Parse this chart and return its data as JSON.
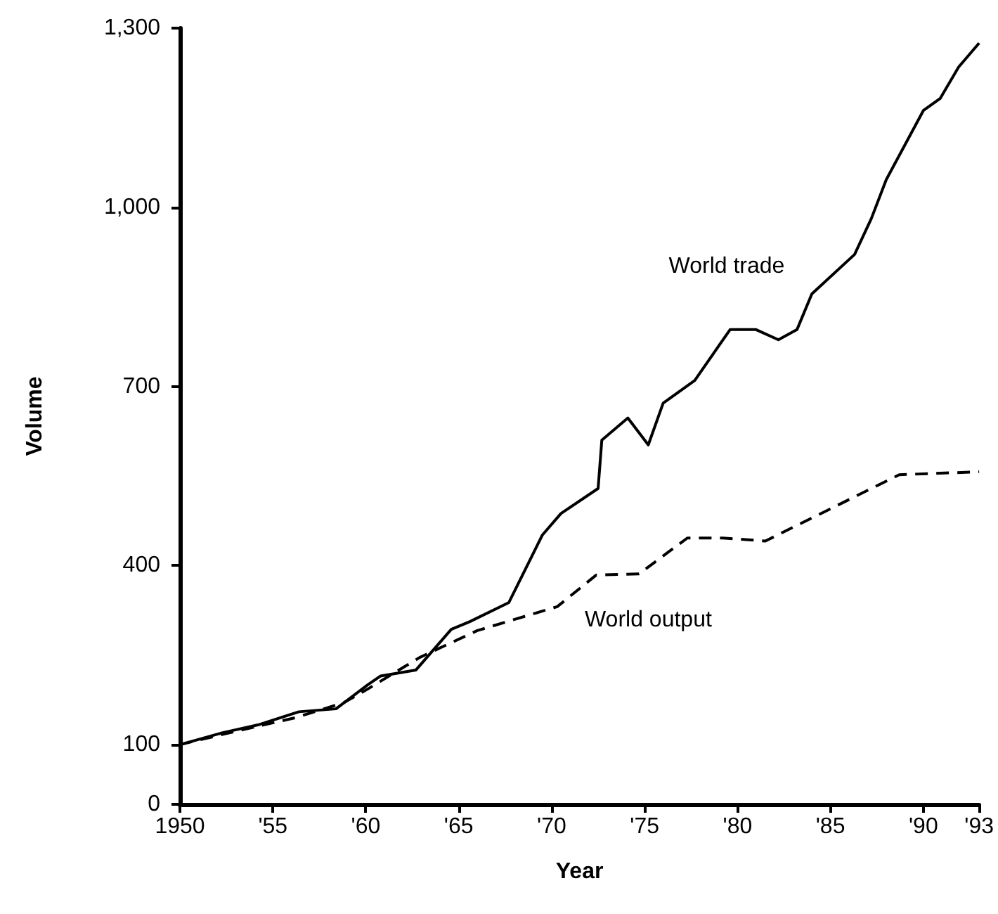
{
  "chart_data": {
    "type": "line",
    "xlabel": "Year",
    "ylabel": "Volume",
    "xlim": [
      1950,
      1993
    ],
    "xticks": [
      1950,
      {
        "value": 1955,
        "label": "'55"
      },
      {
        "value": 1960,
        "label": "'60"
      },
      {
        "value": 1965,
        "label": "'65"
      },
      {
        "value": 1970,
        "label": "'70"
      },
      {
        "value": 1975,
        "label": "'75"
      },
      {
        "value": 1980,
        "label": "'80"
      },
      {
        "value": 1985,
        "label": "'85"
      },
      {
        "value": 1990,
        "label": "'90"
      },
      {
        "value": 1993,
        "label": "'93"
      }
    ],
    "ylim": [
      0,
      1300
    ],
    "yticks": [
      0,
      100,
      400,
      700,
      {
        "value": 1000,
        "label": "1,000"
      },
      {
        "value": 1300,
        "label": "1,300"
      }
    ],
    "grid": false,
    "legend": false,
    "marker": "none",
    "series": [
      {
        "name": "World trade",
        "color": "#000000",
        "line_style": "solid",
        "x": [
          1950,
          1952.3,
          1954.2,
          1956.4,
          1958.4,
          1960.1,
          1960.8,
          1962.7,
          1964.6,
          1965.6,
          1967.7,
          1969.5,
          1970.5,
          1972.5,
          1972.7,
          1974.1,
          1975.2,
          1976,
          1977.7,
          1979.6,
          1981,
          1982.2,
          1983.2,
          1984,
          1986.3,
          1987.2,
          1988,
          1990,
          1990.9,
          1991.9,
          1993
        ],
        "values": [
          100,
          120,
          133,
          155,
          160,
          200,
          215,
          225,
          293,
          306,
          338,
          451,
          487,
          529,
          610,
          647,
          602,
          672,
          710,
          795,
          795,
          778,
          795,
          855,
          921,
          981,
          1046,
          1162,
          1182,
          1235,
          1275
        ]
      },
      {
        "name": "World output",
        "color": "#000000",
        "line_style": "dashed",
        "x": [
          1950,
          1953.1,
          1956.2,
          1958.8,
          1960.1,
          1962.9,
          1966,
          1970.3,
          1972.4,
          1974.7,
          1977.3,
          1979.2,
          1981.5,
          1988.7,
          1993
        ],
        "values": [
          100,
          123,
          145,
          170,
          193,
          246,
          291,
          331,
          384,
          386,
          446,
          446,
          441,
          552,
          557
        ]
      }
    ]
  }
}
